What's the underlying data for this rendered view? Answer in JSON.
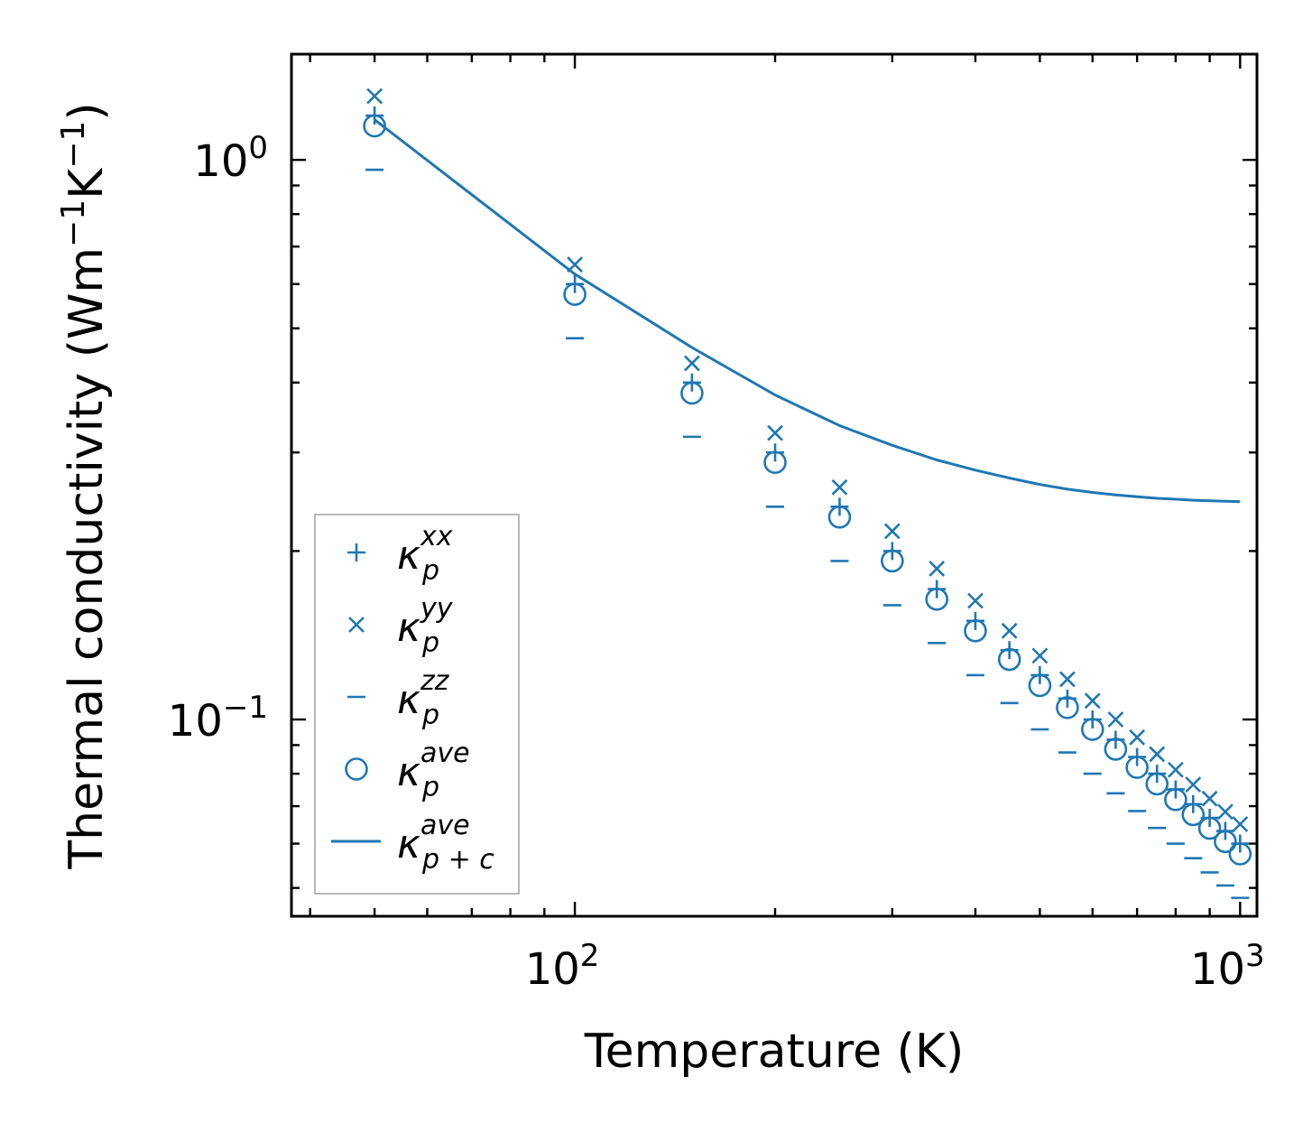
{
  "chart_data": {
    "type": "scatter",
    "xscale": "log",
    "yscale": "log",
    "xlim": [
      37.5,
      1060
    ],
    "ylim": [
      0.0445,
      1.545
    ],
    "xlabel": "Temperature (K)",
    "ylabel": {
      "main": "Thermal conductivity (Wm",
      "exp1": "−1",
      "mid": "K",
      "exp2": "−1",
      "end": ")"
    },
    "xticks": [
      {
        "value": 100,
        "base": "10",
        "exp": "2"
      },
      {
        "value": 1000,
        "base": "10",
        "exp": "3"
      }
    ],
    "yticks": [
      {
        "value": 0.1,
        "base": "10",
        "exp": "−1"
      },
      {
        "value": 1,
        "base": "10",
        "exp": "0"
      }
    ],
    "x": [
      50,
      100,
      150,
      200,
      250,
      300,
      350,
      400,
      450,
      500,
      550,
      600,
      650,
      700,
      750,
      800,
      850,
      900,
      950,
      1000
    ],
    "color": "#1f77b4",
    "series": [
      {
        "name": "kxx",
        "label": "κ",
        "sub": "p",
        "sup": "xx",
        "marker": "plus",
        "values": [
          1.2,
          0.6,
          0.4,
          0.3,
          0.24,
          0.2,
          0.171,
          0.15,
          0.133,
          0.12,
          0.109,
          0.1,
          0.092,
          0.0857,
          0.08,
          0.075,
          0.0706,
          0.0667,
          0.0632,
          0.06
        ]
      },
      {
        "name": "kyy",
        "label": "κ",
        "sub": "p",
        "sup": "yy",
        "marker": "x",
        "values": [
          1.3,
          0.65,
          0.433,
          0.325,
          0.26,
          0.217,
          0.186,
          0.163,
          0.144,
          0.13,
          0.118,
          0.108,
          0.1,
          0.0929,
          0.0867,
          0.0813,
          0.0765,
          0.0722,
          0.0684,
          0.065
        ]
      },
      {
        "name": "kzz",
        "label": "κ",
        "sub": "p",
        "sup": "zz",
        "marker": "dash",
        "values": [
          0.96,
          0.48,
          0.32,
          0.24,
          0.192,
          0.16,
          0.137,
          0.12,
          0.107,
          0.096,
          0.0873,
          0.08,
          0.0738,
          0.0686,
          0.064,
          0.06,
          0.0565,
          0.0533,
          0.0505,
          0.048
        ]
      },
      {
        "name": "kave",
        "label": "κ",
        "sub": "p",
        "sup": "ave",
        "marker": "circle",
        "values": [
          1.15,
          0.575,
          0.383,
          0.288,
          0.23,
          0.192,
          0.164,
          0.144,
          0.128,
          0.115,
          0.105,
          0.096,
          0.0885,
          0.0821,
          0.0767,
          0.0719,
          0.0676,
          0.0639,
          0.0605,
          0.0575
        ]
      },
      {
        "name": "kpc",
        "label": "κ",
        "sub": "p + c",
        "sup": "ave",
        "marker": "line",
        "values": [
          1.18,
          0.625,
          0.462,
          0.38,
          0.335,
          0.309,
          0.291,
          0.279,
          0.27,
          0.263,
          0.258,
          0.2545,
          0.252,
          0.25,
          0.2485,
          0.2475,
          0.2465,
          0.246,
          0.2455,
          0.245
        ]
      }
    ],
    "legend": {
      "position": "lower-left"
    }
  }
}
